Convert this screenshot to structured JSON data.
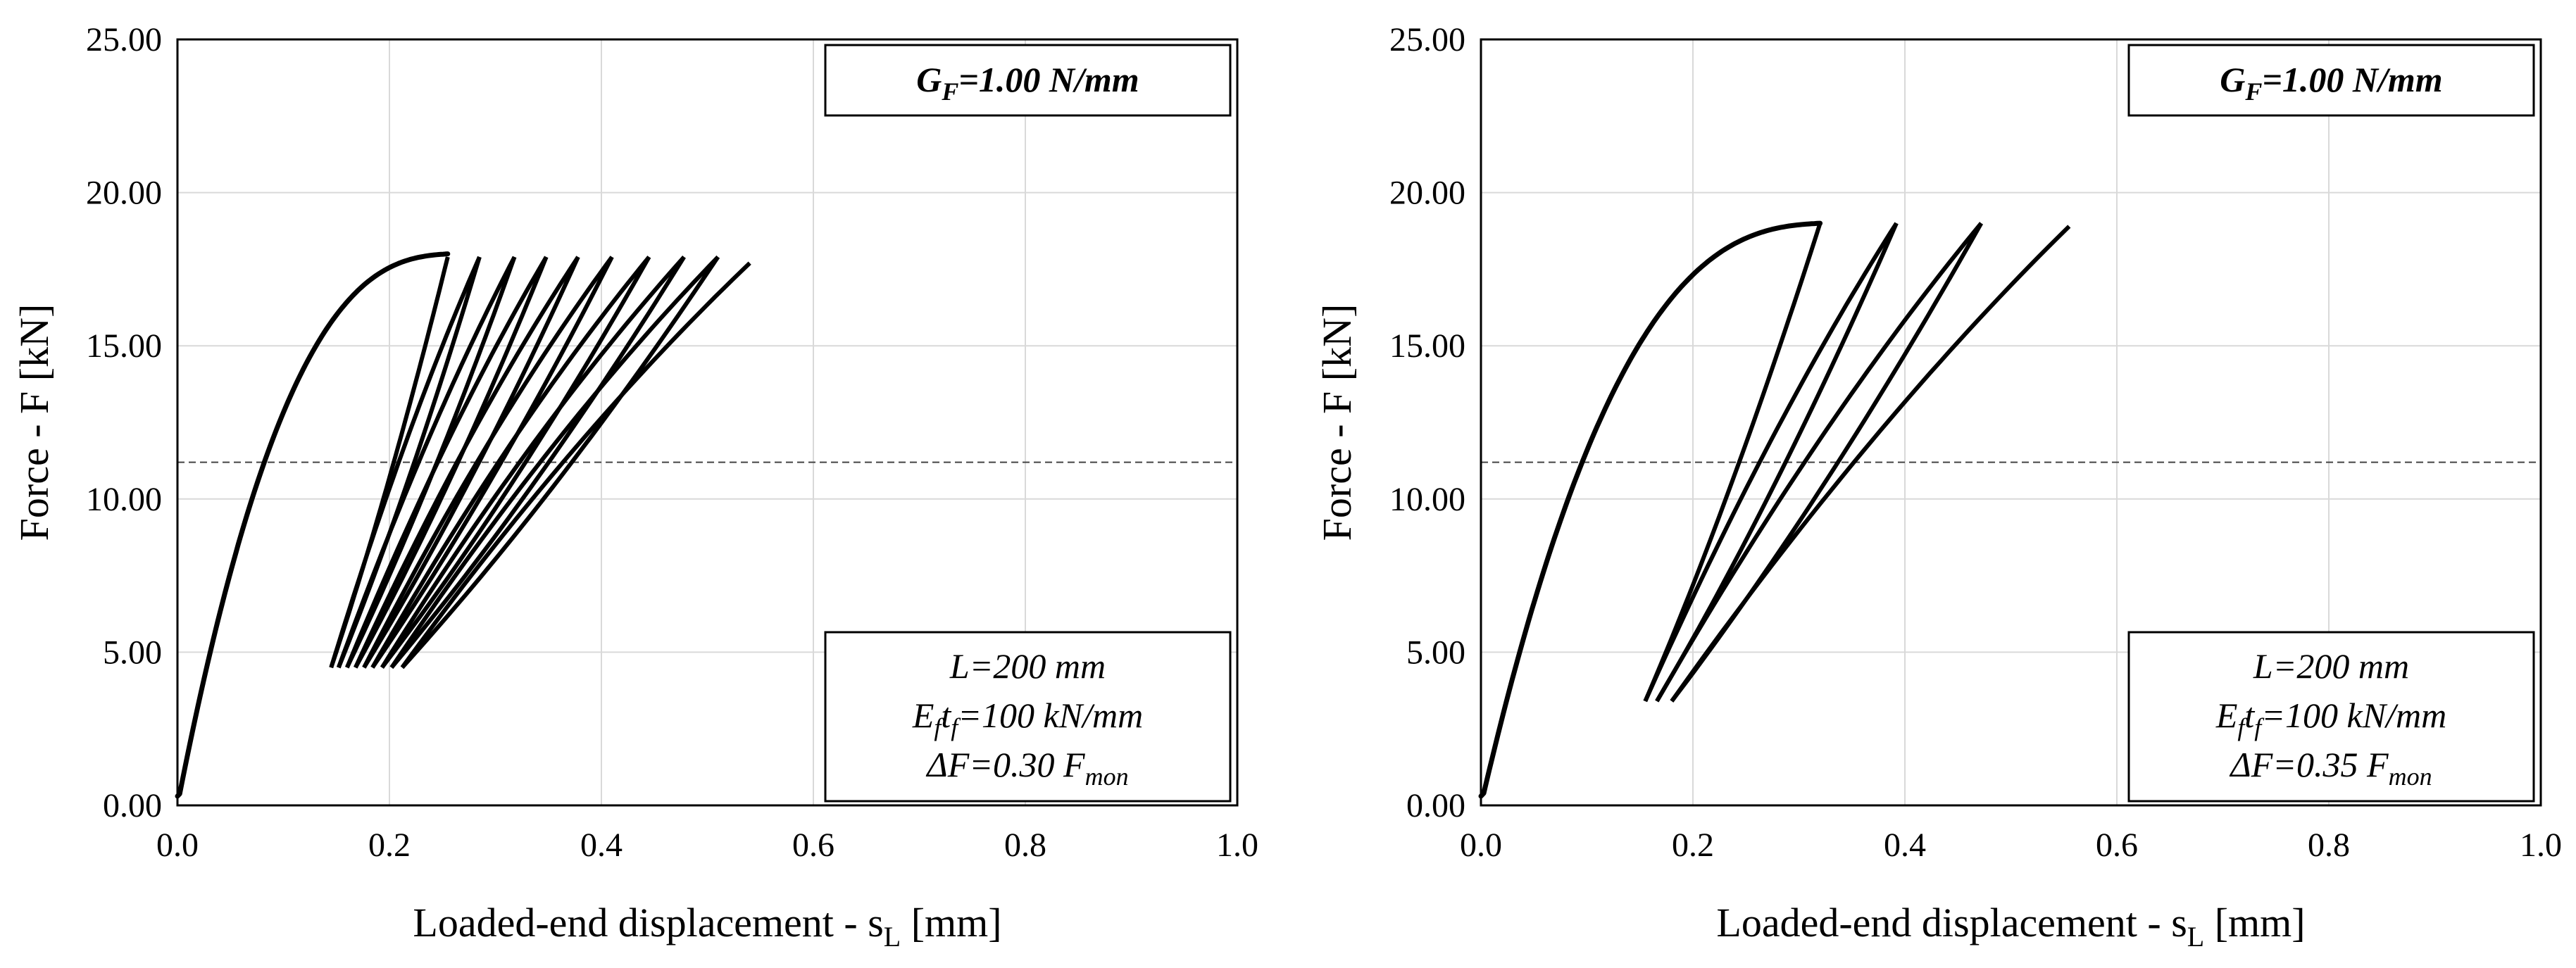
{
  "chart_data": [
    {
      "type": "line",
      "panel": "left",
      "xlabel_main": "Loaded-end displacement - s",
      "xlabel_sub": "L",
      "xlabel_unit": " [mm]",
      "ylabel": "Force - F [kN]",
      "xlim": [
        0,
        1.0
      ],
      "ylim": [
        0,
        25
      ],
      "xticks": [
        "0.0",
        "0.2",
        "0.4",
        "0.6",
        "0.8",
        "1.0"
      ],
      "yticks": [
        "0.00",
        "5.00",
        "10.00",
        "15.00",
        "20.00",
        "25.00"
      ],
      "grid": true,
      "reference_line_y": 11.2,
      "legend_top": {
        "prefix": "G",
        "sub": "F",
        "text": "=1.00 N/mm"
      },
      "legend_bottom": {
        "line1": "L=200 mm",
        "line2_a": "E",
        "line2_sub1": "f",
        "line2_b": "t",
        "line2_sub2": "f",
        "line2_c": "=100 kN/mm",
        "line3_a": "ΔF=0.30 F",
        "line3_sub": "mon"
      },
      "envelope": {
        "peak_force": 18.0,
        "peak_disp": 0.255,
        "end_disp": 0.54,
        "end_force": 17.7
      },
      "cycles": [
        {
          "peak_x": 0.255,
          "peak_y": 17.9,
          "min_x": 0.145,
          "min_y": 4.5
        },
        {
          "peak_x": 0.285,
          "peak_y": 17.9,
          "min_x": 0.152,
          "min_y": 4.5
        },
        {
          "peak_x": 0.318,
          "peak_y": 17.9,
          "min_x": 0.16,
          "min_y": 4.5
        },
        {
          "peak_x": 0.348,
          "peak_y": 17.9,
          "min_x": 0.168,
          "min_y": 4.5
        },
        {
          "peak_x": 0.378,
          "peak_y": 17.9,
          "min_x": 0.176,
          "min_y": 4.5
        },
        {
          "peak_x": 0.41,
          "peak_y": 17.9,
          "min_x": 0.184,
          "min_y": 4.5
        },
        {
          "peak_x": 0.445,
          "peak_y": 17.9,
          "min_x": 0.193,
          "min_y": 4.5
        },
        {
          "peak_x": 0.478,
          "peak_y": 17.9,
          "min_x": 0.202,
          "min_y": 4.5
        },
        {
          "peak_x": 0.51,
          "peak_y": 17.9,
          "min_x": 0.212,
          "min_y": 4.5
        }
      ]
    },
    {
      "type": "line",
      "panel": "right",
      "xlabel_main": "Loaded-end displacement - s",
      "xlabel_sub": "L",
      "xlabel_unit": " [mm]",
      "ylabel": "Force - F [kN]",
      "xlim": [
        0,
        1.0
      ],
      "ylim": [
        0,
        25
      ],
      "xticks": [
        "0.0",
        "0.2",
        "0.4",
        "0.6",
        "0.8",
        "1.0"
      ],
      "yticks": [
        "0.00",
        "5.00",
        "10.00",
        "15.00",
        "20.00",
        "25.00"
      ],
      "grid": true,
      "reference_line_y": 11.2,
      "legend_top": {
        "prefix": "G",
        "sub": "F",
        "text": "=1.00 N/mm"
      },
      "legend_bottom": {
        "line1": "L=200 mm",
        "line2_a": "E",
        "line2_sub1": "f",
        "line2_b": "t",
        "line2_sub2": "f",
        "line2_c": "=100 kN/mm",
        "line3_a": "ΔF=0.35 F",
        "line3_sub": "mon"
      },
      "envelope": {
        "peak_force": 19.0,
        "peak_disp": 0.32,
        "end_disp": 0.555,
        "end_force": 18.9
      },
      "cycles": [
        {
          "peak_x": 0.32,
          "peak_y": 19.0,
          "min_x": 0.155,
          "min_y": 3.4
        },
        {
          "peak_x": 0.392,
          "peak_y": 19.0,
          "min_x": 0.166,
          "min_y": 3.4
        },
        {
          "peak_x": 0.472,
          "peak_y": 19.0,
          "min_x": 0.18,
          "min_y": 3.4
        }
      ]
    }
  ]
}
